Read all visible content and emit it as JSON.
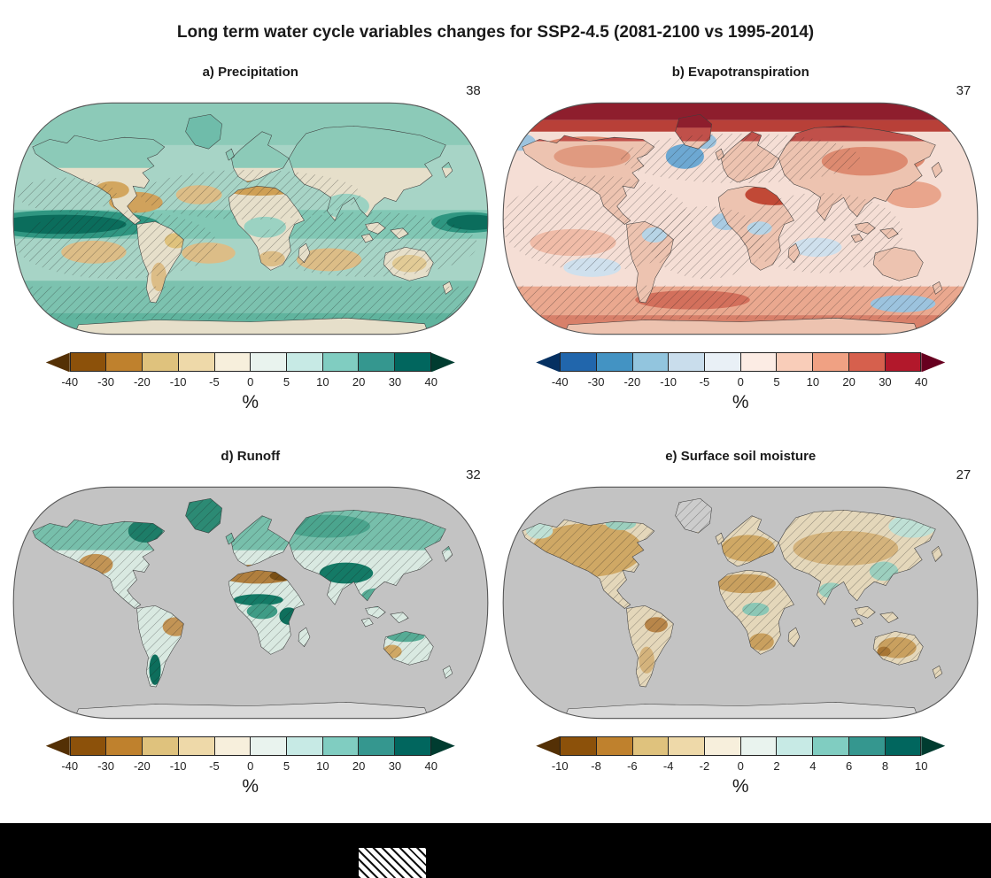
{
  "figure_title": "Long term water cycle variables changes for SSP2-4.5 (2081-2100 vs 1995-2014)",
  "panels": [
    {
      "id": "a",
      "title": "a) Precipitation",
      "model_count": "38",
      "unit": "%",
      "ticks": [
        "-40",
        "-30",
        "-20",
        "-10",
        "-5",
        "0",
        "5",
        "10",
        "20",
        "30",
        "40"
      ],
      "arrow_left": "#543005",
      "cells": [
        "#8c510a",
        "#bf812d",
        "#dfc27d",
        "#eed9a9",
        "#f7efdc",
        "#e9f3ee",
        "#c7eae5",
        "#80cdc1",
        "#35978f",
        "#01665e"
      ],
      "arrow_right": "#003c30"
    },
    {
      "id": "b",
      "title": "b) Evapotranspiration",
      "model_count": "37",
      "unit": "%",
      "ticks": [
        "-40",
        "-30",
        "-20",
        "-10",
        "-5",
        "0",
        "5",
        "10",
        "20",
        "30",
        "40"
      ],
      "arrow_left": "#053061",
      "cells": [
        "#2166ac",
        "#4393c3",
        "#92c5de",
        "#c9ddec",
        "#e9f0f6",
        "#fcece4",
        "#f9cdb9",
        "#f0a183",
        "#d6604d",
        "#b2182b"
      ],
      "arrow_right": "#67001f"
    },
    {
      "id": "d",
      "title": "d) Runoff",
      "model_count": "32",
      "unit": "%",
      "ticks": [
        "-40",
        "-30",
        "-20",
        "-10",
        "-5",
        "0",
        "5",
        "10",
        "20",
        "30",
        "40"
      ],
      "arrow_left": "#543005",
      "cells": [
        "#8c510a",
        "#bf812d",
        "#dfc27d",
        "#eed9a9",
        "#f7efdc",
        "#e9f3ee",
        "#c7eae5",
        "#80cdc1",
        "#35978f",
        "#01665e"
      ],
      "arrow_right": "#003c30"
    },
    {
      "id": "e",
      "title": "e) Surface soil moisture",
      "model_count": "27",
      "unit": "%",
      "ticks": [
        "-10",
        "-8",
        "-6",
        "-4",
        "-2",
        "0",
        "2",
        "4",
        "6",
        "8",
        "10"
      ],
      "arrow_left": "#543005",
      "cells": [
        "#8c510a",
        "#bf812d",
        "#dfc27d",
        "#eed9a9",
        "#f7efdc",
        "#e9f3ee",
        "#c7eae5",
        "#80cdc1",
        "#35978f",
        "#01665e"
      ],
      "arrow_right": "#003c30"
    }
  ],
  "footer": {
    "background": "#000000",
    "hatch_swatch_present": true
  },
  "chart_data": [
    {
      "type": "heatmap",
      "subtype": "global-map-robinson",
      "title": "a) Precipitation",
      "models_shown": 38,
      "units": "%",
      "colorbar_ticks": [
        -40,
        -30,
        -20,
        -10,
        -5,
        0,
        5,
        10,
        20,
        30,
        40
      ],
      "colorbar_range": [
        -40,
        40
      ],
      "palette": "brown (negative) to teal (positive)",
      "ocean_shown": true,
      "hatching_overlay": true,
      "pattern_summary": "Teal (wetting) at high latitudes and along the equatorial Pacific; brown (drying) over subtropical oceans, Central America, Mediterranean and southern oceans; widespread diagonal hatching."
    },
    {
      "type": "heatmap",
      "subtype": "global-map-robinson",
      "title": "b) Evapotranspiration",
      "models_shown": 37,
      "units": "%",
      "colorbar_ticks": [
        -40,
        -30,
        -20,
        -10,
        -5,
        0,
        5,
        10,
        20,
        30,
        40
      ],
      "colorbar_range": [
        -40,
        40
      ],
      "palette": "blue (negative) to red (positive)",
      "ocean_shown": true,
      "hatching_overlay": true,
      "pattern_summary": "Strong dark-red increases across the Arctic and high northern latitudes; light red over most oceans and land; scattered blue decreases over the North Atlantic, tropical Atlantic, Amazon and central Africa; widespread hatching."
    },
    {
      "type": "heatmap",
      "subtype": "global-map-robinson",
      "title": "d) Runoff",
      "models_shown": 32,
      "units": "%",
      "colorbar_ticks": [
        -40,
        -30,
        -20,
        -10,
        -5,
        0,
        5,
        10,
        20,
        30,
        40
      ],
      "colorbar_range": [
        -40,
        40
      ],
      "palette": "brown (negative) to teal (positive)",
      "ocean_shown": false,
      "hatching_overlay": true,
      "pattern_summary": "Land-only map with gray oceans; teal increases at high northern latitudes, East Africa, South Asia and southern Chile; brown decreases around the Mediterranean, Middle East, western North America and parts of South America; hatching over most land."
    },
    {
      "type": "heatmap",
      "subtype": "global-map-robinson",
      "title": "e) Surface soil moisture",
      "models_shown": 27,
      "units": "%",
      "colorbar_ticks": [
        -10,
        -8,
        -6,
        -4,
        -2,
        0,
        2,
        4,
        6,
        8,
        10
      ],
      "colorbar_range": [
        -10,
        10
      ],
      "palette": "brown (negative) to teal (positive)",
      "ocean_shown": false,
      "hatching_overlay": true,
      "pattern_summary": "Land-only map with gray oceans; light brown drying over most continents (North America, Europe, Amazon, southern Africa, Australia); small teal wetting patches in central Africa, India and parts of Asia; hatching over most land."
    }
  ]
}
